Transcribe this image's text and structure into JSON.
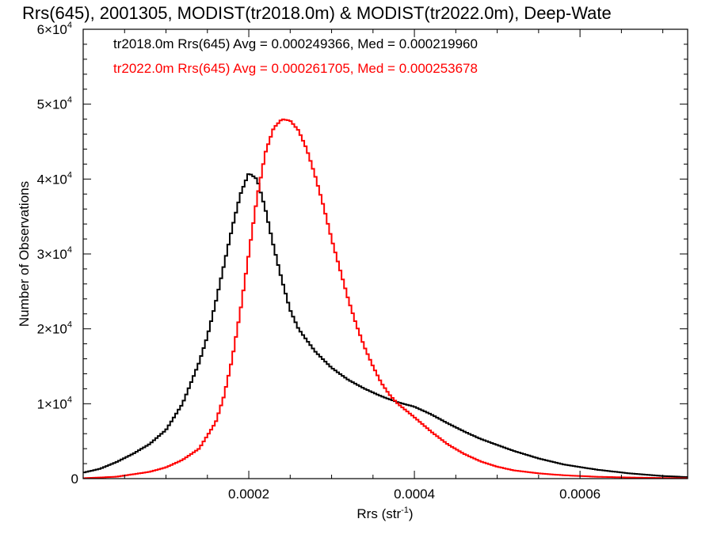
{
  "chart_data": {
    "type": "line",
    "title": "Rrs(645), 2001305, MODIST(tr2018.0m) & MODIST(tr2022.0m), Deep-Wate",
    "xlabel": "Rrs (str",
    "xlabel_sup": "-1",
    "xlabel_close": ")",
    "ylabel": "Number of Observations",
    "xlim": [
      0.0,
      0.00073
    ],
    "ylim": [
      0,
      60000
    ],
    "x_ticks": [
      {
        "value": 0.0002,
        "label": "0.0002"
      },
      {
        "value": 0.0004,
        "label": "0.0004"
      },
      {
        "value": 0.0006,
        "label": "0.0006"
      }
    ],
    "y_ticks": [
      {
        "value": 0,
        "mant": "0",
        "exp": ""
      },
      {
        "value": 10000,
        "mant": "1×10",
        "exp": "4"
      },
      {
        "value": 20000,
        "mant": "2×10",
        "exp": "4"
      },
      {
        "value": 30000,
        "mant": "3×10",
        "exp": "4"
      },
      {
        "value": 40000,
        "mant": "4×10",
        "exp": "4"
      },
      {
        "value": 50000,
        "mant": "5×10",
        "exp": "4"
      },
      {
        "value": 60000,
        "mant": "6×10",
        "exp": "4"
      }
    ],
    "grid": false,
    "legend": "top-left",
    "series": [
      {
        "name": "tr2018.0m",
        "annotation": "tr2018.0m Rrs(645) Avg = 0.000249366, Med = 0.000219960",
        "color": "#000000",
        "points": [
          [
            0.0,
            800
          ],
          [
            2e-05,
            1300
          ],
          [
            4e-05,
            2200
          ],
          [
            6e-05,
            3300
          ],
          [
            8e-05,
            4600
          ],
          [
            0.0001,
            6500
          ],
          [
            0.00012,
            10000
          ],
          [
            0.00014,
            15500
          ],
          [
            0.00015,
            19000
          ],
          [
            0.00016,
            23500
          ],
          [
            0.00017,
            28500
          ],
          [
            0.00018,
            33500
          ],
          [
            0.00019,
            38000
          ],
          [
            0.0002,
            40800
          ],
          [
            0.00021,
            40000
          ],
          [
            0.00022,
            36000
          ],
          [
            0.00023,
            31000
          ],
          [
            0.00024,
            26500
          ],
          [
            0.00025,
            22500
          ],
          [
            0.00026,
            20000
          ],
          [
            0.00028,
            17000
          ],
          [
            0.0003,
            14800
          ],
          [
            0.00032,
            13200
          ],
          [
            0.00034,
            12000
          ],
          [
            0.00036,
            11000
          ],
          [
            0.00038,
            10200
          ],
          [
            0.0004,
            9600
          ],
          [
            0.00042,
            8600
          ],
          [
            0.00044,
            7400
          ],
          [
            0.00046,
            6300
          ],
          [
            0.00048,
            5300
          ],
          [
            0.0005,
            4500
          ],
          [
            0.00052,
            3700
          ],
          [
            0.00055,
            2700
          ],
          [
            0.00058,
            1900
          ],
          [
            0.00062,
            1200
          ],
          [
            0.00066,
            700
          ],
          [
            0.0007,
            350
          ],
          [
            0.00073,
            200
          ]
        ]
      },
      {
        "name": "tr2022.0m",
        "annotation": "tr2022.0m Rrs(645) Avg = 0.000261705, Med = 0.000253678",
        "color": "#ff0000",
        "points": [
          [
            0.0,
            50
          ],
          [
            4e-05,
            250
          ],
          [
            8e-05,
            900
          ],
          [
            0.0001,
            1500
          ],
          [
            0.00012,
            2500
          ],
          [
            0.00014,
            4000
          ],
          [
            0.00016,
            7500
          ],
          [
            0.00017,
            11000
          ],
          [
            0.00018,
            16000
          ],
          [
            0.00019,
            22500
          ],
          [
            0.0002,
            30000
          ],
          [
            0.00021,
            37500
          ],
          [
            0.00022,
            43500
          ],
          [
            0.00023,
            46800
          ],
          [
            0.00024,
            48000
          ],
          [
            0.00025,
            47800
          ],
          [
            0.00026,
            46500
          ],
          [
            0.00027,
            44000
          ],
          [
            0.00028,
            40500
          ],
          [
            0.00029,
            36500
          ],
          [
            0.0003,
            32000
          ],
          [
            0.00031,
            28000
          ],
          [
            0.00032,
            24000
          ],
          [
            0.00033,
            20500
          ],
          [
            0.00034,
            17500
          ],
          [
            0.00035,
            15000
          ],
          [
            0.00036,
            12800
          ],
          [
            0.00037,
            11200
          ],
          [
            0.00038,
            10000
          ],
          [
            0.0004,
            8200
          ],
          [
            0.00042,
            6300
          ],
          [
            0.00044,
            4600
          ],
          [
            0.00046,
            3300
          ],
          [
            0.00048,
            2300
          ],
          [
            0.0005,
            1600
          ],
          [
            0.00052,
            1100
          ],
          [
            0.00055,
            700
          ],
          [
            0.00058,
            450
          ],
          [
            0.00062,
            250
          ],
          [
            0.00066,
            150
          ],
          [
            0.0007,
            80
          ],
          [
            0.00073,
            50
          ]
        ]
      }
    ]
  }
}
